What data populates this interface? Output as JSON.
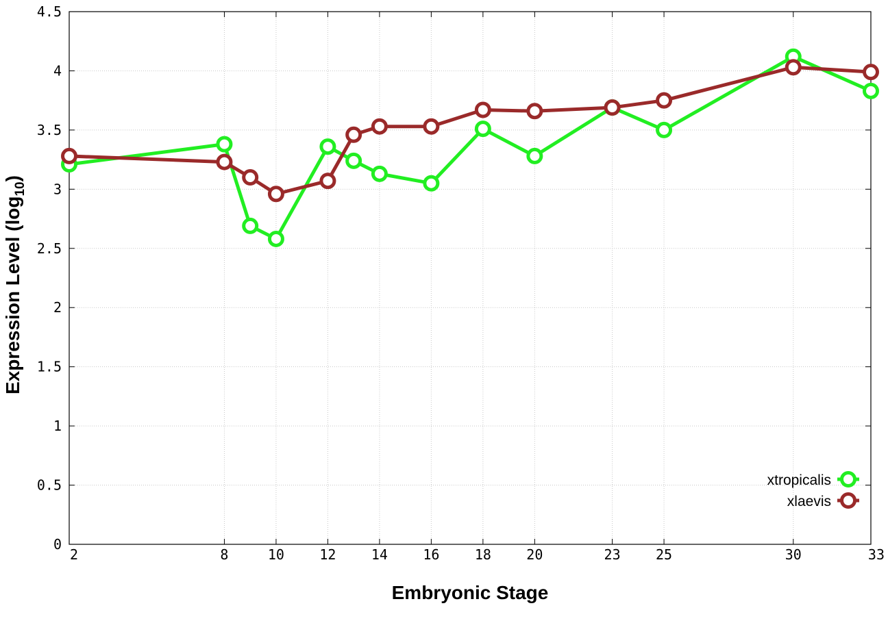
{
  "chart_data": {
    "type": "line",
    "title": "",
    "xlabel": "Embryonic Stage",
    "ylabel_main": "Expression Level (log",
    "ylabel_sub": "10",
    "ylabel_close": ")",
    "x_ticks": [
      "2",
      "8",
      "10",
      "12",
      "14",
      "16",
      "18",
      "20",
      "23",
      "25",
      "30",
      "33"
    ],
    "y_ticks": [
      "0",
      "0.5",
      "1",
      "1.5",
      "2",
      "2.5",
      "3",
      "3.5",
      "4",
      "4.5"
    ],
    "ylim": [
      0,
      4.5
    ],
    "grid": true,
    "legend_position": "bottom-right",
    "x": [
      "2",
      "8",
      "9",
      "10",
      "12",
      "13",
      "14",
      "16",
      "18",
      "20",
      "23",
      "25",
      "30",
      "33"
    ],
    "series": [
      {
        "name": "xtropicalis",
        "color": "#22ee22",
        "values": [
          3.21,
          3.38,
          2.69,
          2.58,
          3.36,
          3.24,
          3.13,
          3.05,
          3.51,
          3.28,
          3.69,
          3.5,
          4.12,
          3.83
        ]
      },
      {
        "name": "xlaevis",
        "color": "#9a2a2a",
        "values": [
          3.28,
          3.23,
          3.1,
          2.96,
          3.07,
          3.46,
          3.53,
          3.53,
          3.67,
          3.66,
          3.69,
          3.75,
          4.03,
          3.99
        ]
      }
    ]
  }
}
